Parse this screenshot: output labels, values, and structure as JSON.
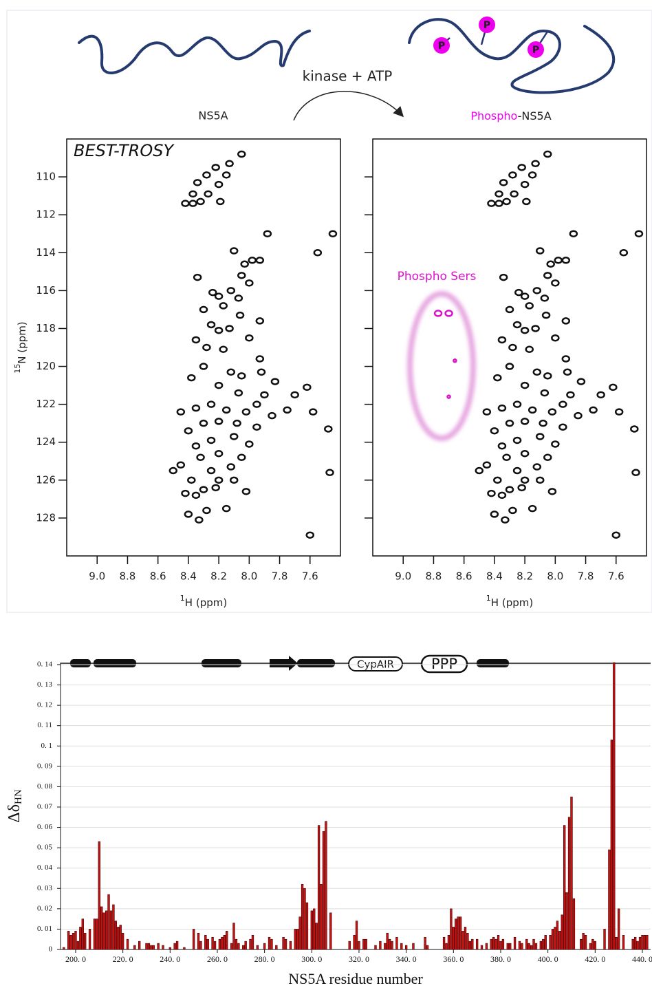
{
  "figure": {
    "unphospho_label": "NS5A",
    "reaction_label": "kinase + ATP",
    "phospho_prefix": "Phospho",
    "phospho_suffix": "-NS5A",
    "phosphate_symbol": "P",
    "domain_labels": [
      "CypAIR",
      "PPP"
    ]
  },
  "chart_data": [
    {
      "type": "scatter",
      "title": "BEST-TROSY",
      "x_label_superscript": "1",
      "x_label": "H (ppm)",
      "y_label_superscript": "15",
      "y_label": "N (ppm)",
      "xlim": [
        9.2,
        7.4
      ],
      "ylim": [
        130,
        108
      ],
      "xticks": [
        {
          "value": 9,
          "label": "9.0"
        },
        8.8,
        8.6,
        8.4,
        8.2,
        {
          "value": 8,
          "label": "8.0"
        },
        7.8,
        7.6
      ],
      "yticks": [
        110,
        112,
        114,
        116,
        118,
        120,
        122,
        124,
        126,
        128
      ],
      "ytick_labels": true,
      "color": "#111111",
      "x": [
        8.05,
        8.13,
        8.22,
        8.15,
        8.28,
        8.34,
        8.2,
        8.27,
        8.37,
        8.32,
        8.42,
        8.37,
        8.19,
        7.88,
        8.1,
        7.45,
        7.55,
        7.98,
        8.03,
        7.93,
        8.34,
        8.05,
        8.0,
        8.12,
        8.2,
        8.24,
        8.07,
        8.17,
        8.3,
        8.06,
        7.93,
        8.25,
        8.13,
        8.2,
        8.35,
        8.0,
        8.28,
        8.17,
        7.93,
        8.3,
        8.12,
        8.05,
        7.92,
        8.38,
        8.2,
        7.83,
        7.9,
        8.07,
        7.7,
        7.62,
        8.25,
        8.35,
        8.15,
        8.02,
        7.95,
        7.85,
        8.45,
        7.75,
        7.58,
        8.3,
        8.2,
        8.08,
        7.95,
        8.4,
        8.1,
        8.25,
        8.0,
        8.35,
        7.48,
        8.2,
        8.05,
        8.32,
        8.45,
        8.12,
        8.25,
        8.5,
        7.47,
        8.38,
        8.2,
        8.3,
        8.02,
        8.42,
        8.35,
        8.22,
        8.15,
        8.28,
        8.4,
        8.33,
        7.6,
        8.1
      ],
      "y": [
        108.8,
        109.3,
        109.5,
        109.9,
        109.9,
        110.3,
        110.4,
        110.9,
        110.9,
        111.3,
        111.4,
        111.4,
        111.3,
        113.0,
        113.9,
        113.0,
        114.0,
        114.4,
        114.6,
        114.4,
        115.3,
        115.2,
        115.6,
        116.0,
        116.3,
        116.1,
        116.4,
        116.8,
        117.0,
        117.3,
        117.6,
        117.8,
        118.0,
        118.1,
        118.6,
        118.5,
        119.0,
        119.1,
        119.6,
        120.0,
        120.3,
        120.5,
        120.3,
        120.6,
        121.0,
        120.8,
        121.5,
        121.4,
        121.5,
        121.1,
        122.0,
        122.2,
        122.3,
        122.4,
        122.0,
        122.6,
        122.4,
        122.3,
        122.4,
        123.0,
        122.9,
        123.0,
        123.2,
        123.4,
        123.7,
        123.9,
        124.1,
        124.2,
        123.3,
        124.6,
        124.8,
        124.8,
        125.2,
        125.3,
        125.5,
        125.5,
        125.6,
        126.0,
        126.0,
        126.5,
        126.6,
        126.7,
        126.8,
        126.4,
        127.5,
        127.6,
        127.8,
        128.1,
        128.9,
        126.0
      ]
    },
    {
      "type": "scatter",
      "x_label_superscript": "1",
      "x_label": "H (ppm)",
      "xlim": [
        9.2,
        7.4
      ],
      "ylim": [
        130,
        108
      ],
      "xticks": [
        {
          "value": 9,
          "label": "9.0"
        },
        8.8,
        8.6,
        8.4,
        8.2,
        {
          "value": 8,
          "label": "8.0"
        },
        7.8,
        7.6
      ],
      "yticks": [
        110,
        112,
        114,
        116,
        118,
        120,
        122,
        124,
        126,
        128
      ],
      "ytick_labels": false,
      "color": "#111111",
      "x": [
        8.05,
        8.13,
        8.22,
        8.15,
        8.28,
        8.34,
        8.2,
        8.27,
        8.37,
        8.32,
        8.42,
        8.37,
        8.19,
        7.88,
        8.1,
        7.45,
        7.55,
        7.98,
        8.03,
        7.93,
        8.34,
        8.05,
        8.0,
        8.12,
        8.2,
        8.24,
        8.07,
        8.17,
        8.3,
        8.06,
        7.93,
        8.25,
        8.13,
        8.2,
        8.35,
        8.0,
        8.28,
        8.17,
        7.93,
        8.3,
        8.12,
        8.05,
        7.92,
        8.38,
        8.2,
        7.83,
        7.9,
        8.07,
        7.7,
        7.62,
        8.25,
        8.35,
        8.15,
        8.02,
        7.95,
        7.85,
        8.45,
        7.75,
        7.58,
        8.3,
        8.2,
        8.08,
        7.95,
        8.4,
        8.1,
        8.25,
        8.0,
        8.35,
        7.48,
        8.2,
        8.05,
        8.32,
        8.45,
        8.12,
        8.25,
        8.5,
        7.47,
        8.38,
        8.2,
        8.3,
        8.02,
        8.42,
        8.35,
        8.22,
        8.15,
        8.28,
        8.4,
        8.33,
        7.6,
        8.1
      ],
      "y": [
        108.8,
        109.3,
        109.5,
        109.9,
        109.9,
        110.3,
        110.4,
        110.9,
        110.9,
        111.3,
        111.4,
        111.4,
        111.3,
        113.0,
        113.9,
        113.0,
        114.0,
        114.4,
        114.6,
        114.4,
        115.3,
        115.2,
        115.6,
        116.0,
        116.3,
        116.1,
        116.4,
        116.8,
        117.0,
        117.3,
        117.6,
        117.8,
        118.0,
        118.1,
        118.6,
        118.5,
        119.0,
        119.1,
        119.6,
        120.0,
        120.3,
        120.5,
        120.3,
        120.6,
        121.0,
        120.8,
        121.5,
        121.4,
        121.5,
        121.1,
        122.0,
        122.2,
        122.3,
        122.4,
        122.0,
        122.6,
        122.4,
        122.3,
        122.4,
        123.0,
        122.9,
        123.0,
        123.2,
        123.4,
        123.7,
        123.9,
        124.1,
        124.2,
        123.3,
        124.6,
        124.8,
        124.8,
        125.2,
        125.3,
        125.5,
        125.5,
        125.6,
        126.0,
        126.0,
        126.5,
        126.6,
        126.7,
        126.8,
        126.4,
        127.5,
        127.6,
        127.8,
        128.1,
        128.9,
        126.0
      ],
      "highlight": {
        "label": "Phospho Sers",
        "color": "#dd11cc",
        "x": [
          8.77,
          8.7,
          8.66,
          8.7
        ],
        "y": [
          117.2,
          117.2,
          119.7,
          121.6
        ]
      }
    },
    {
      "type": "bar",
      "x_label": "NS5A residue number",
      "y_label": "Δδ",
      "y_label_subscript": "HN",
      "color": "#cc1111",
      "grid": true,
      "xlim": [
        193.6,
        443.5
      ],
      "ylim": [
        0,
        0.141
      ],
      "xticks": [
        {
          "value": 200,
          "label": "200. 0"
        },
        {
          "value": 220,
          "label": "220. 0"
        },
        {
          "value": 240,
          "label": "240. 0"
        },
        {
          "value": 260,
          "label": "260. 0"
        },
        {
          "value": 280,
          "label": "280. 0"
        },
        {
          "value": 300,
          "label": "300. 0"
        },
        {
          "value": 320,
          "label": "320. 0"
        },
        {
          "value": 340,
          "label": "340. 0"
        },
        {
          "value": 360,
          "label": "360. 0"
        },
        {
          "value": 380,
          "label": "380. 0"
        },
        {
          "value": 400,
          "label": "400. 0"
        },
        {
          "value": 420,
          "label": "420. 0"
        },
        {
          "value": 440,
          "label": "440. 0"
        }
      ],
      "yticks": [
        0,
        {
          "value": 0.01,
          "label": "0. 01"
        },
        {
          "value": 0.02,
          "label": "0. 02"
        },
        {
          "value": 0.03,
          "label": "0. 03"
        },
        {
          "value": 0.04,
          "label": "0. 04"
        },
        {
          "value": 0.05,
          "label": "0. 05"
        },
        {
          "value": 0.06,
          "label": "0. 06"
        },
        {
          "value": 0.07,
          "label": "0. 07"
        },
        {
          "value": 0.08,
          "label": "0. 08"
        },
        {
          "value": 0.09,
          "label": "0. 09"
        },
        {
          "value": 0.1,
          "label": "0. 1"
        },
        {
          "value": 0.11,
          "label": "0. 11"
        },
        {
          "value": 0.12,
          "label": "0. 12"
        },
        {
          "value": 0.13,
          "label": "0. 13"
        },
        {
          "value": 0.14,
          "label": "0. 14"
        }
      ],
      "x": [
        195,
        197,
        198,
        199,
        200,
        201,
        202,
        203,
        204,
        206,
        208,
        209,
        210,
        211,
        212,
        213,
        214,
        215,
        216,
        217,
        218,
        219,
        220,
        222,
        225,
        227,
        230,
        231,
        232,
        233,
        235,
        237,
        240,
        242,
        243,
        246,
        250,
        252,
        253,
        255,
        256,
        258,
        259,
        261,
        262,
        263,
        264,
        266,
        267,
        268,
        269,
        271,
        272,
        274,
        275,
        277,
        280,
        282,
        283,
        285,
        288,
        289,
        291,
        293,
        294,
        295,
        296,
        297,
        298,
        300,
        301,
        302,
        303,
        304,
        305,
        306,
        308,
        316,
        318,
        319,
        320,
        322,
        323,
        327,
        329,
        331,
        332,
        333,
        334,
        336,
        338,
        340,
        343,
        348,
        349,
        356,
        357,
        358,
        359,
        360,
        361,
        362,
        363,
        364,
        365,
        366,
        367,
        368,
        370,
        372,
        374,
        376,
        377,
        378,
        379,
        380,
        381,
        383,
        384,
        386,
        388,
        389,
        391,
        392,
        393,
        394,
        395,
        397,
        398,
        399,
        401,
        402,
        403,
        404,
        405,
        406,
        407,
        408,
        409,
        410,
        411,
        414,
        415,
        416,
        418,
        419,
        420,
        424,
        426,
        427,
        428,
        429,
        430,
        432,
        436,
        437,
        438,
        439,
        440,
        441,
        442
      ],
      "values": [
        0.001,
        0.009,
        0.007,
        0.008,
        0.009,
        0.004,
        0.011,
        0.015,
        0.008,
        0.01,
        0.015,
        0.015,
        0.053,
        0.021,
        0.018,
        0.019,
        0.027,
        0.019,
        0.022,
        0.014,
        0.011,
        0.012,
        0.008,
        0.005,
        0.002,
        0.004,
        0.003,
        0.003,
        0.002,
        0.002,
        0.003,
        0.002,
        0.001,
        0.003,
        0.004,
        0.001,
        0.01,
        0.008,
        0.004,
        0.007,
        0.005,
        0.006,
        0.004,
        0.005,
        0.006,
        0.007,
        0.009,
        0.003,
        0.013,
        0.005,
        0.003,
        0.002,
        0.004,
        0.005,
        0.007,
        0.002,
        0.003,
        0.006,
        0.005,
        0.002,
        0.006,
        0.005,
        0.004,
        0.01,
        0.01,
        0.016,
        0.032,
        0.03,
        0.023,
        0.019,
        0.02,
        0.013,
        0.061,
        0.032,
        0.058,
        0.063,
        0.018,
        0.004,
        0.007,
        0.014,
        0.004,
        0.005,
        0.005,
        0.002,
        0.004,
        0.003,
        0.008,
        0.005,
        0.004,
        0.006,
        0.003,
        0.002,
        0.003,
        0.006,
        0.002,
        0.006,
        0.003,
        0.007,
        0.02,
        0.011,
        0.015,
        0.016,
        0.016,
        0.009,
        0.011,
        0.008,
        0.004,
        0.005,
        0.005,
        0.002,
        0.003,
        0.005,
        0.006,
        0.005,
        0.007,
        0.004,
        0.005,
        0.003,
        0.003,
        0.006,
        0.004,
        0.003,
        0.005,
        0.003,
        0.002,
        0.005,
        0.003,
        0.004,
        0.005,
        0.007,
        0.007,
        0.01,
        0.011,
        0.014,
        0.009,
        0.017,
        0.061,
        0.028,
        0.065,
        0.075,
        0.025,
        0.005,
        0.008,
        0.007,
        0.003,
        0.005,
        0.004,
        0.01,
        0.049,
        0.103,
        0.141,
        0.006,
        0.02,
        0.007,
        0.005,
        0.006,
        0.004,
        0.006,
        0.007,
        0.007,
        0.007
      ]
    }
  ]
}
